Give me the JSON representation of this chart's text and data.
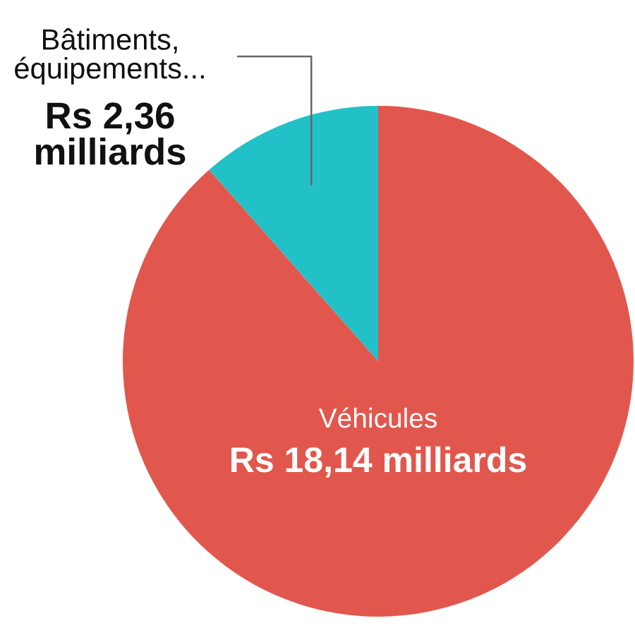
{
  "chart_data": {
    "type": "pie",
    "categories": [
      "Bâtiments,\néquipements...",
      "Véhicules"
    ],
    "values": [
      2.36,
      18.14
    ],
    "colors": [
      "#22c1c8",
      "#e2574d"
    ],
    "value_labels": [
      "Rs 2,36\nmilliards",
      "Rs 18,14 milliards"
    ]
  }
}
